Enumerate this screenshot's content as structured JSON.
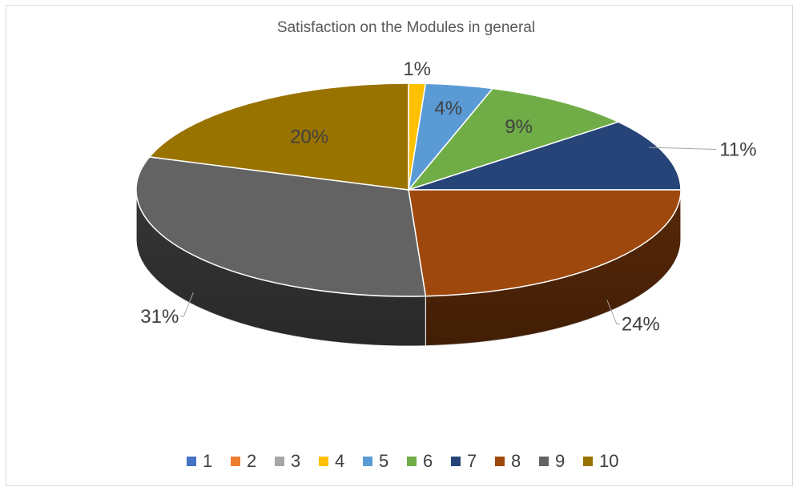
{
  "chart_data": {
    "type": "pie",
    "title": "Satisfaction on the Modules in general",
    "categories": [
      "1",
      "2",
      "3",
      "4",
      "5",
      "6",
      "7",
      "8",
      "9",
      "10"
    ],
    "values": [
      0,
      0,
      0,
      1,
      4,
      9,
      11,
      24,
      31,
      20
    ],
    "labels": [
      "",
      "",
      "",
      "1%",
      "4%",
      "9%",
      "11%",
      "24%",
      "31%",
      "20%"
    ],
    "colors": [
      "#4472C4",
      "#ED7D31",
      "#A5A5A5",
      "#FFC000",
      "#5B9BD5",
      "#70AD47",
      "#264478",
      "#9E480E",
      "#636363",
      "#997300"
    ],
    "legend_position": "bottom",
    "three_d": true
  }
}
